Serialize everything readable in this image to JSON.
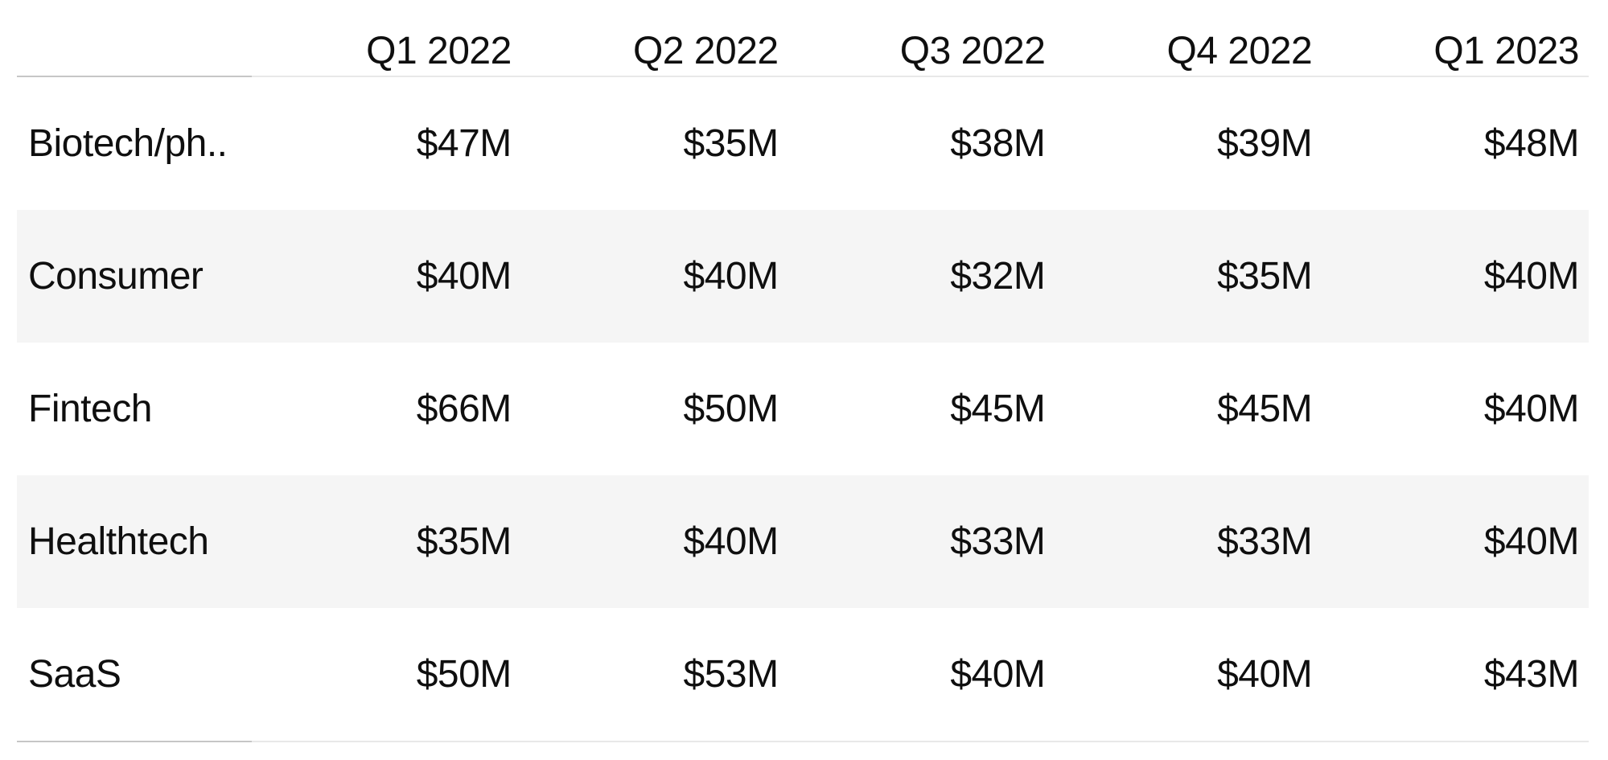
{
  "chart_data": {
    "type": "table",
    "title": "",
    "categories": [
      "Q1 2022",
      "Q2 2022",
      "Q3 2022",
      "Q4 2022",
      "Q1 2023"
    ],
    "series": [
      {
        "name": "Biotech/ph..",
        "values": [
          47,
          35,
          38,
          39,
          48
        ]
      },
      {
        "name": "Consumer",
        "values": [
          40,
          40,
          32,
          35,
          40
        ]
      },
      {
        "name": "Fintech",
        "values": [
          66,
          50,
          45,
          45,
          40
        ]
      },
      {
        "name": "Healthtech",
        "values": [
          35,
          40,
          33,
          33,
          40
        ]
      },
      {
        "name": "SaaS",
        "values": [
          50,
          53,
          40,
          40,
          43
        ]
      }
    ],
    "value_unit": "$M",
    "layout": {
      "striped_rows": [
        1,
        3
      ],
      "value_alignment": "right",
      "grid": "off"
    }
  },
  "table": {
    "corner_label": "",
    "columns": [
      "Q1 2022",
      "Q2 2022",
      "Q3 2022",
      "Q4 2022",
      "Q1 2023"
    ],
    "rows": [
      {
        "label": "Biotech/ph..",
        "values": [
          "$47M",
          "$35M",
          "$38M",
          "$39M",
          "$48M"
        ]
      },
      {
        "label": "Consumer",
        "values": [
          "$40M",
          "$40M",
          "$32M",
          "$35M",
          "$40M"
        ]
      },
      {
        "label": "Fintech",
        "values": [
          "$66M",
          "$50M",
          "$45M",
          "$45M",
          "$40M"
        ]
      },
      {
        "label": "Healthtech",
        "values": [
          "$35M",
          "$40M",
          "$33M",
          "$33M",
          "$40M"
        ]
      },
      {
        "label": "SaaS",
        "values": [
          "$50M",
          "$53M",
          "$40M",
          "$40M",
          "$43M"
        ]
      }
    ]
  },
  "colors": {
    "text": "#0f0f0f",
    "stripe_background": "#f5f5f5",
    "divider_dark": "#c6c6c6",
    "divider_light": "#e8e8e8",
    "page_background": "#ffffff"
  }
}
